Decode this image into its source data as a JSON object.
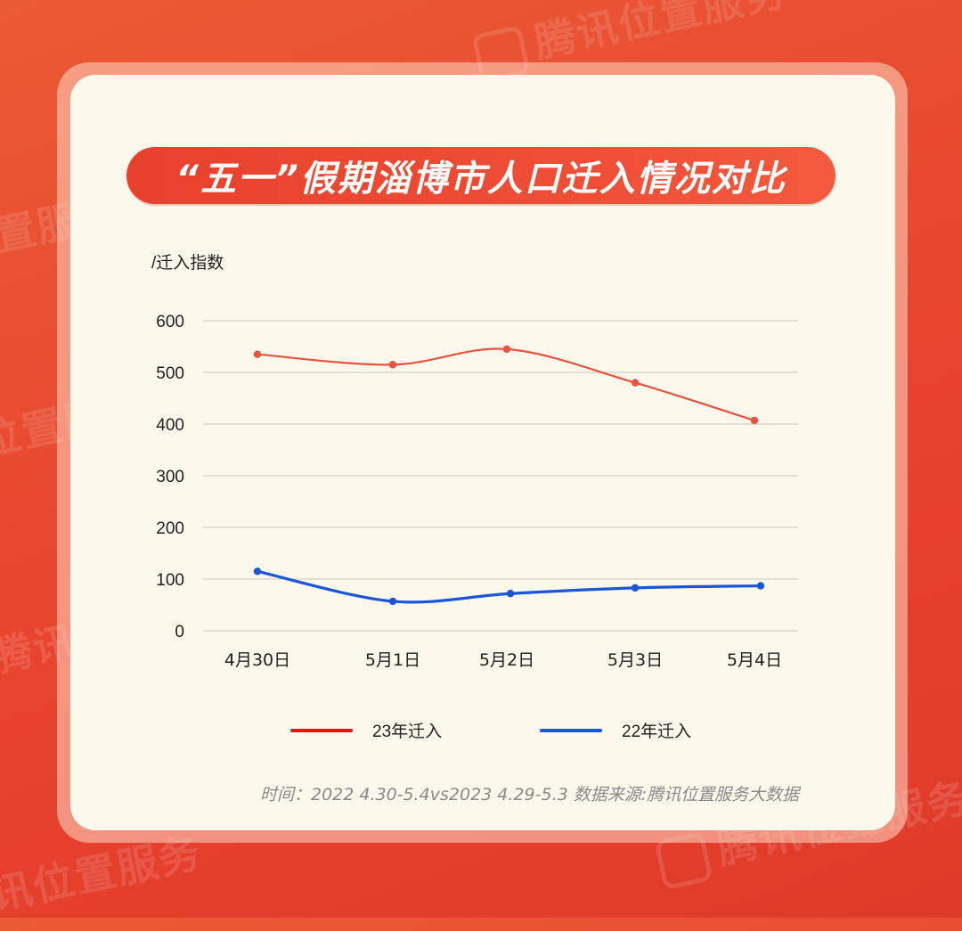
{
  "watermark_text": "腾讯位置服务",
  "title": "“五一”假期淄博市人口迁入情况对比",
  "y_unit_label": "/迁入指数",
  "footer_note": "时间：2022 4.30-5.4vs2023 4.29-5.3  数据来源:腾讯位置服务大数据",
  "colors": {
    "background": "#e8432e",
    "card": "#fdf8ec",
    "series_2023": "#e8533f",
    "series_2022": "#1a56d6",
    "legend_2023": "#ee1111",
    "legend_2022": "#1655d8",
    "grid": "#c9c6bd"
  },
  "chart_data": {
    "type": "line",
    "categories": [
      "4月30日",
      "5月1日",
      "5月2日",
      "5月3日",
      "5月4日"
    ],
    "yticks": [
      "0",
      "100",
      "200",
      "300",
      "400",
      "500",
      "600"
    ],
    "ylim": [
      0,
      600
    ],
    "grid": true,
    "legend_position": "bottom",
    "series": [
      {
        "name": "23年迁入",
        "values": [
          535,
          515,
          545,
          480,
          407
        ]
      },
      {
        "name": "22年迁入",
        "values": [
          115,
          57,
          72,
          83,
          87
        ]
      }
    ]
  }
}
